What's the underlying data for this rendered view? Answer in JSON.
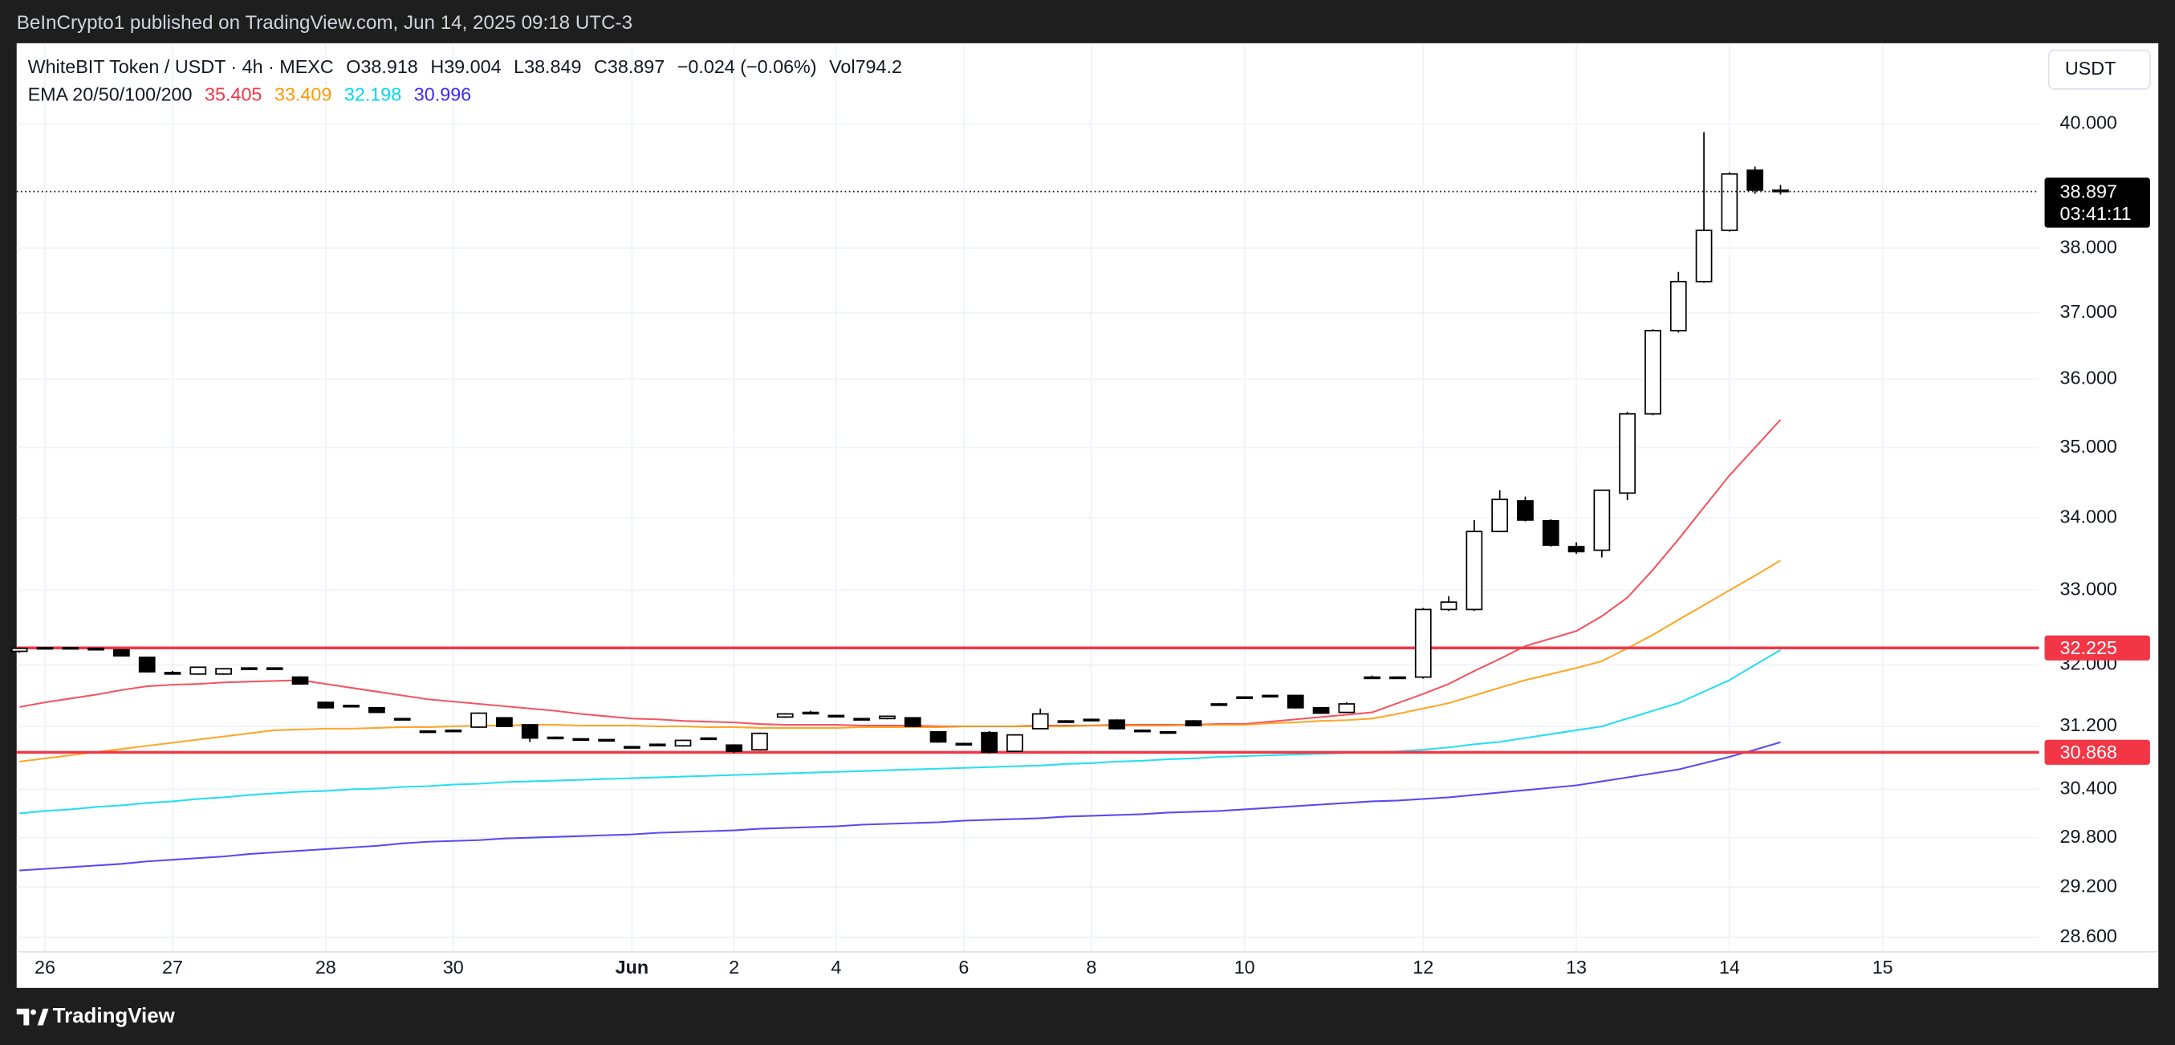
{
  "header": {
    "published": "BeInCrypto1 published on TradingView.com, Jun 14, 2025 09:18 UTC-3"
  },
  "footer": {
    "brand": "TradingView"
  },
  "chart_data": {
    "type": "candlestick",
    "currency": "USDT",
    "legend": {
      "symbol": "WhiteBIT Token / USDT · 4h · MEXC",
      "ohlc_labels": [
        "O",
        "H",
        "L",
        "C"
      ],
      "change": "−0.024 (−0.06%)",
      "volume_label": "Vol",
      "volume": 794.2,
      "ema_label": "EMA 20/50/100/200"
    },
    "log_scale": true,
    "grid": true,
    "up_color": "#ffffff",
    "down_color": "#000000",
    "wick_color": "#000000",
    "ylim": [
      28.43,
      41.35
    ],
    "yticks": [
      {
        "value": 28.6,
        "label": "28.600"
      },
      {
        "value": 29.2,
        "label": "29.200"
      },
      {
        "value": 29.8,
        "label": "29.800"
      },
      {
        "value": 30.4,
        "label": "30.400"
      },
      {
        "value": 31.2,
        "label": "31.200"
      },
      {
        "value": 32,
        "label": "32.000"
      },
      {
        "value": 33,
        "label": "33.000"
      },
      {
        "value": 34,
        "label": "34.000"
      },
      {
        "value": 35,
        "label": "35.000"
      },
      {
        "value": 36,
        "label": "36.000"
      },
      {
        "value": 37,
        "label": "37.000"
      },
      {
        "value": 38,
        "label": "38.000"
      },
      {
        "value": 40,
        "label": "40.000"
      }
    ],
    "categories": [
      null,
      "26",
      null,
      null,
      null,
      null,
      "27",
      null,
      null,
      null,
      null,
      null,
      "28",
      null,
      null,
      null,
      null,
      "30",
      null,
      null,
      null,
      null,
      null,
      null,
      "Jun",
      null,
      null,
      null,
      "2",
      null,
      null,
      null,
      "4",
      null,
      null,
      null,
      null,
      "6",
      null,
      null,
      null,
      null,
      "8",
      null,
      null,
      null,
      null,
      null,
      "10",
      null,
      null,
      null,
      null,
      null,
      null,
      "12",
      null,
      null,
      null,
      null,
      null,
      "13",
      null,
      null,
      null,
      null,
      null,
      "14",
      null,
      null,
      null,
      null,
      null,
      "15"
    ],
    "open": [
      32.18,
      32.22,
      32.23,
      32.22,
      32.2,
      32.1,
      31.9,
      31.88,
      31.88,
      31.95,
      31.96,
      31.84,
      31.51,
      31.47,
      31.44,
      31.3,
      31.14,
      31.15,
      31.19,
      31.31,
      31.22,
      31.06,
      31.04,
      31.03,
      30.94,
      30.97,
      30.95,
      31.05,
      30.96,
      30.9,
      31.32,
      31.38,
      31.33,
      31.3,
      31.3,
      31.31,
      31.13,
      30.98,
      31.12,
      30.88,
      31.17,
      31.27,
      31.29,
      31.28,
      31.15,
      31.13,
      31.27,
      31.49,
      31.58,
      31.59,
      31.6,
      31.44,
      31.38,
      31.83,
      31.83,
      31.84,
      32.74,
      32.74,
      33.81,
      34.24,
      33.96,
      33.6,
      33.55,
      34.35,
      35.49,
      36.73,
      37.48,
      38.28,
      39.24,
      38.918,
      null,
      null,
      null,
      null
    ],
    "high": [
      32.23,
      32.24,
      32.24,
      32.23,
      32.21,
      32.11,
      31.92,
      31.98,
      31.96,
      31.97,
      31.97,
      31.85,
      31.52,
      31.48,
      31.45,
      31.31,
      31.15,
      31.16,
      31.38,
      31.32,
      31.23,
      31.07,
      31.05,
      31.04,
      30.95,
      30.98,
      31.03,
      31.06,
      30.97,
      31.12,
      31.37,
      31.4,
      31.35,
      31.31,
      31.34,
      31.32,
      31.14,
      30.99,
      31.14,
      31.1,
      31.43,
      31.28,
      31.3,
      31.29,
      31.16,
      31.14,
      31.28,
      31.5,
      31.59,
      31.61,
      31.61,
      31.45,
      31.51,
      31.86,
      31.85,
      32.76,
      32.92,
      33.97,
      34.39,
      34.3,
      33.98,
      33.66,
      34.4,
      35.52,
      36.75,
      37.63,
      39.86,
      39.21,
      39.3,
      39.004,
      null,
      null,
      null,
      null
    ],
    "low": [
      32.16,
      32.21,
      32.22,
      32.2,
      32.12,
      31.9,
      31.87,
      31.87,
      31.87,
      31.94,
      31.95,
      31.74,
      31.43,
      31.46,
      31.37,
      31.29,
      31.13,
      31.14,
      31.18,
      31.19,
      31.0,
      31.05,
      31.03,
      31.02,
      30.93,
      30.96,
      30.94,
      31.04,
      30.86,
      30.89,
      31.31,
      31.37,
      31.32,
      31.29,
      31.29,
      31.19,
      30.99,
      30.97,
      30.85,
      30.87,
      31.16,
      31.26,
      31.28,
      31.16,
      31.14,
      31.12,
      31.2,
      31.48,
      31.57,
      31.58,
      31.43,
      31.36,
      31.37,
      31.82,
      31.82,
      31.82,
      32.72,
      32.72,
      33.8,
      33.95,
      33.6,
      33.5,
      33.45,
      34.25,
      35.47,
      36.7,
      37.46,
      38.26,
      38.86,
      38.849,
      null,
      null,
      null,
      null
    ],
    "close": [
      32.22,
      32.23,
      32.22,
      32.2,
      32.12,
      31.91,
      31.88,
      31.97,
      31.95,
      31.96,
      31.96,
      31.75,
      31.44,
      31.47,
      31.38,
      31.3,
      31.14,
      31.15,
      31.37,
      31.2,
      31.05,
      31.06,
      31.04,
      31.03,
      30.94,
      30.97,
      31.02,
      31.05,
      30.88,
      31.11,
      31.36,
      31.38,
      31.34,
      31.3,
      31.33,
      31.2,
      31.0,
      30.98,
      30.87,
      31.09,
      31.36,
      31.27,
      31.29,
      31.17,
      31.15,
      31.13,
      31.21,
      31.49,
      31.58,
      31.6,
      31.44,
      31.37,
      31.49,
      31.84,
      31.84,
      32.74,
      32.84,
      33.81,
      34.26,
      33.97,
      33.62,
      33.53,
      34.39,
      35.49,
      36.73,
      37.48,
      38.28,
      39.18,
      38.92,
      38.897,
      null,
      null,
      null,
      null
    ],
    "countdown": "03:41:11",
    "series": [
      {
        "color": "#f23645",
        "values": [
          31.45,
          31.51,
          31.56,
          31.61,
          31.67,
          31.72,
          31.74,
          31.75,
          31.77,
          31.78,
          31.79,
          31.8,
          31.75,
          31.7,
          31.65,
          31.6,
          31.55,
          31.52,
          31.49,
          31.46,
          31.43,
          31.4,
          31.36,
          31.33,
          31.3,
          31.29,
          31.27,
          31.26,
          31.25,
          31.23,
          31.22,
          31.22,
          31.22,
          31.21,
          31.21,
          31.21,
          31.2,
          31.2,
          31.2,
          31.2,
          31.21,
          31.21,
          31.21,
          31.22,
          31.22,
          31.22,
          31.22,
          31.23,
          31.23,
          31.26,
          31.29,
          31.32,
          31.35,
          31.38,
          31.5,
          31.62,
          31.75,
          31.92,
          32.08,
          32.25,
          32.35,
          32.45,
          32.65,
          32.9,
          33.28,
          33.7,
          34.15,
          34.6,
          35.0,
          35.405,
          null,
          null,
          null,
          null
        ]
      },
      {
        "color": "#ff9800",
        "values": [
          30.75,
          30.79,
          30.83,
          30.87,
          30.91,
          30.95,
          30.99,
          31.03,
          31.07,
          31.11,
          31.15,
          31.16,
          31.17,
          31.17,
          31.18,
          31.19,
          31.19,
          31.2,
          31.21,
          31.21,
          31.22,
          31.22,
          31.21,
          31.21,
          31.21,
          31.2,
          31.2,
          31.19,
          31.19,
          31.18,
          31.18,
          31.18,
          31.18,
          31.19,
          31.19,
          31.19,
          31.19,
          31.2,
          31.2,
          31.2,
          31.2,
          31.2,
          31.21,
          31.21,
          31.21,
          31.21,
          31.22,
          31.22,
          31.22,
          31.24,
          31.25,
          31.27,
          31.28,
          31.3,
          31.36,
          31.43,
          31.5,
          31.6,
          31.7,
          31.8,
          31.88,
          31.96,
          32.05,
          32.22,
          32.4,
          32.6,
          32.8,
          33.0,
          33.2,
          33.409,
          null,
          null,
          null,
          null
        ]
      },
      {
        "color": "#00d8f0",
        "values": [
          30.1,
          30.13,
          30.15,
          30.18,
          30.2,
          30.23,
          30.25,
          30.28,
          30.3,
          30.33,
          30.35,
          30.37,
          30.38,
          30.4,
          30.41,
          30.43,
          30.44,
          30.46,
          30.47,
          30.49,
          30.5,
          30.51,
          30.52,
          30.53,
          30.54,
          30.55,
          30.56,
          30.57,
          30.58,
          30.59,
          30.6,
          30.61,
          30.62,
          30.63,
          30.64,
          30.65,
          30.66,
          30.67,
          30.68,
          30.69,
          30.7,
          30.72,
          30.73,
          30.75,
          30.76,
          30.78,
          30.79,
          30.81,
          30.82,
          30.83,
          30.84,
          30.85,
          30.86,
          30.87,
          30.88,
          30.9,
          30.93,
          30.97,
          31.0,
          31.05,
          31.1,
          31.15,
          31.2,
          31.3,
          31.4,
          31.5,
          31.65,
          31.8,
          32.0,
          32.198,
          null,
          null,
          null,
          null
        ]
      },
      {
        "color": "#3b2bf0",
        "values": [
          29.4,
          29.42,
          29.44,
          29.46,
          29.48,
          29.51,
          29.53,
          29.55,
          29.57,
          29.6,
          29.62,
          29.64,
          29.66,
          29.68,
          29.7,
          29.73,
          29.75,
          29.76,
          29.77,
          29.79,
          29.8,
          29.81,
          29.82,
          29.83,
          29.84,
          29.86,
          29.87,
          29.88,
          29.89,
          29.91,
          29.92,
          29.93,
          29.94,
          29.96,
          29.97,
          29.98,
          29.99,
          30.01,
          30.02,
          30.03,
          30.04,
          30.06,
          30.07,
          30.08,
          30.09,
          30.11,
          30.12,
          30.13,
          30.15,
          30.17,
          30.19,
          30.21,
          30.23,
          30.25,
          30.26,
          30.28,
          30.3,
          30.33,
          30.36,
          30.39,
          30.42,
          30.45,
          30.5,
          30.55,
          30.6,
          30.65,
          30.73,
          30.81,
          30.9,
          30.996,
          null,
          null,
          null,
          null
        ]
      }
    ],
    "levels": [
      {
        "value": 32.225,
        "color": "#f23645"
      },
      {
        "value": 30.868,
        "color": "#f23645"
      }
    ]
  }
}
